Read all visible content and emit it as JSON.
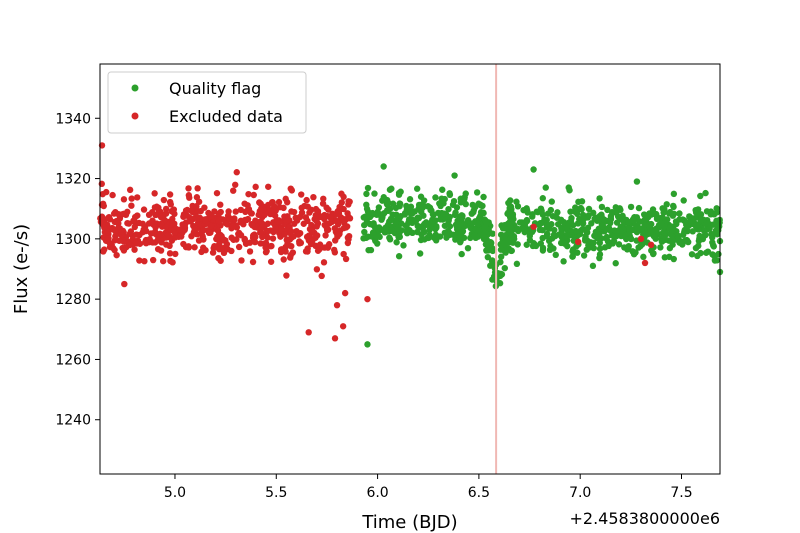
{
  "chart_data": {
    "type": "scatter",
    "xlabel": "Time (BJD)",
    "ylabel": "Flux (e-/s)",
    "x_offset_label": "+2.4583800000e6",
    "xlim": [
      4.63,
      7.69
    ],
    "ylim": [
      1222,
      1358
    ],
    "xticks": [
      5.0,
      5.5,
      6.0,
      6.5,
      7.0,
      7.5
    ],
    "xtick_labels": [
      "5.0",
      "5.5",
      "6.0",
      "6.5",
      "7.0",
      "7.5"
    ],
    "yticks": [
      1240,
      1260,
      1280,
      1300,
      1320,
      1340
    ],
    "ytick_labels": [
      "1240",
      "1260",
      "1280",
      "1300",
      "1320",
      "1340"
    ],
    "grid": false,
    "legend": {
      "placement": "top-left",
      "entries": [
        "Quality flag",
        "Excluded data"
      ]
    },
    "vline": {
      "x": 6.585,
      "color": "#f0b8b4"
    },
    "colors": {
      "quality": "#2ca02c",
      "excluded": "#d62728"
    },
    "series": [
      {
        "name": "Quality flag",
        "color": "#2ca02c",
        "segments": [
          {
            "x_range": [
              5.93,
              6.56
            ],
            "mean": 1306,
            "sd": 4.5
          },
          {
            "x_range": [
              6.61,
              7.69
            ],
            "mean": 1303,
            "sd": 4.5
          }
        ],
        "transit": {
          "x_range": [
            6.53,
            6.66
          ],
          "center": 6.585,
          "depth": 18,
          "sd": 4
        },
        "outliers": [
          [
            6.03,
            1324
          ],
          [
            5.95,
            1265
          ],
          [
            6.77,
            1323
          ],
          [
            6.83,
            1317
          ],
          [
            7.28,
            1319
          ],
          [
            7.69,
            1289
          ],
          [
            6.38,
            1321
          ]
        ]
      },
      {
        "name": "Excluded data",
        "color": "#d62728",
        "segments": [
          {
            "x_range": [
              4.63,
              5.87
            ],
            "mean": 1304,
            "sd": 5.2
          }
        ],
        "outliers": [
          [
            4.64,
            1331
          ],
          [
            4.75,
            1285
          ],
          [
            5.66,
            1269
          ],
          [
            5.79,
            1267
          ],
          [
            5.83,
            1271
          ],
          [
            5.8,
            1278
          ],
          [
            5.95,
            1280
          ],
          [
            5.84,
            1282
          ],
          [
            6.77,
            1304
          ],
          [
            6.99,
            1299
          ],
          [
            7.3,
            1300
          ],
          [
            7.32,
            1292
          ],
          [
            7.35,
            1298
          ]
        ]
      }
    ]
  }
}
